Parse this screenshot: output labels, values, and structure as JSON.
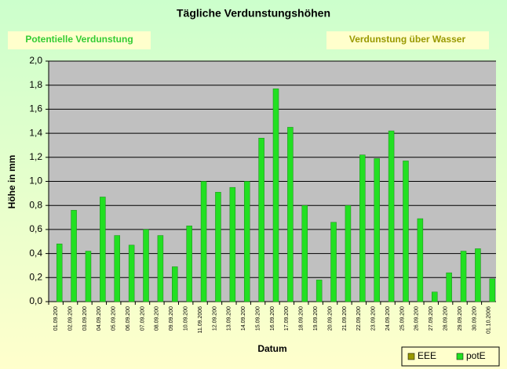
{
  "chart_data": {
    "type": "bar",
    "title": "Tägliche Verdunstungshöhen",
    "annotations": [
      "Potentielle Verdunstung",
      "Verdunstung über Wasser"
    ],
    "xlabel": "Datum",
    "ylabel": "Höhe in mm",
    "categories": [
      "01.09.200",
      "02.09.200",
      "03.09.200",
      "04.09.200",
      "05.09.200",
      "06.09.200",
      "07.09.200",
      "08.09.200",
      "09.09.200",
      "10.09.200",
      "11.09.2006",
      "12.09.200",
      "13.09.200",
      "14.09.200",
      "15.09.200",
      "16.09.200",
      "17.09.200",
      "18.09.200",
      "19.09.200",
      "20.09.200",
      "21.09.200",
      "22.09.200",
      "23.09.200",
      "24.09.200",
      "25.09.200",
      "26.09.200",
      "27.09.200",
      "28.09.200",
      "29.09.200",
      "30.09.200",
      "01.10.2006"
    ],
    "series": [
      {
        "name": "EEE",
        "color": "#999900",
        "values": [
          null,
          null,
          null,
          null,
          null,
          null,
          null,
          null,
          null,
          null,
          null,
          null,
          null,
          null,
          null,
          null,
          null,
          null,
          null,
          null,
          null,
          null,
          null,
          null,
          null,
          null,
          null,
          null,
          null,
          null,
          null
        ]
      },
      {
        "name": "potE",
        "color": "#22e022",
        "values": [
          0.48,
          0.76,
          0.42,
          0.87,
          0.55,
          0.47,
          0.6,
          0.55,
          0.29,
          0.63,
          1.0,
          0.91,
          0.95,
          1.0,
          1.36,
          1.77,
          1.45,
          0.8,
          0.18,
          0.66,
          0.8,
          1.22,
          1.19,
          1.42,
          1.17,
          0.69,
          0.08,
          0.24,
          0.42,
          0.44,
          0.19
        ]
      }
    ],
    "ylim": [
      0,
      2
    ],
    "yticks": [
      {
        "value": 0,
        "label": "0,0"
      },
      {
        "value": 0.2,
        "label": "0,2"
      },
      {
        "value": 0.4,
        "label": "0,4"
      },
      {
        "value": 0.6,
        "label": "0,6"
      },
      {
        "value": 0.8,
        "label": "0,8"
      },
      {
        "value": 1.0,
        "label": "1,0"
      },
      {
        "value": 1.2,
        "label": "1,2"
      },
      {
        "value": 1.4,
        "label": "1,4"
      },
      {
        "value": 1.6,
        "label": "1,6"
      },
      {
        "value": 1.8,
        "label": "1,8"
      },
      {
        "value": 2.0,
        "label": "2,0"
      }
    ],
    "grid": true,
    "legend": "bottom-right"
  }
}
